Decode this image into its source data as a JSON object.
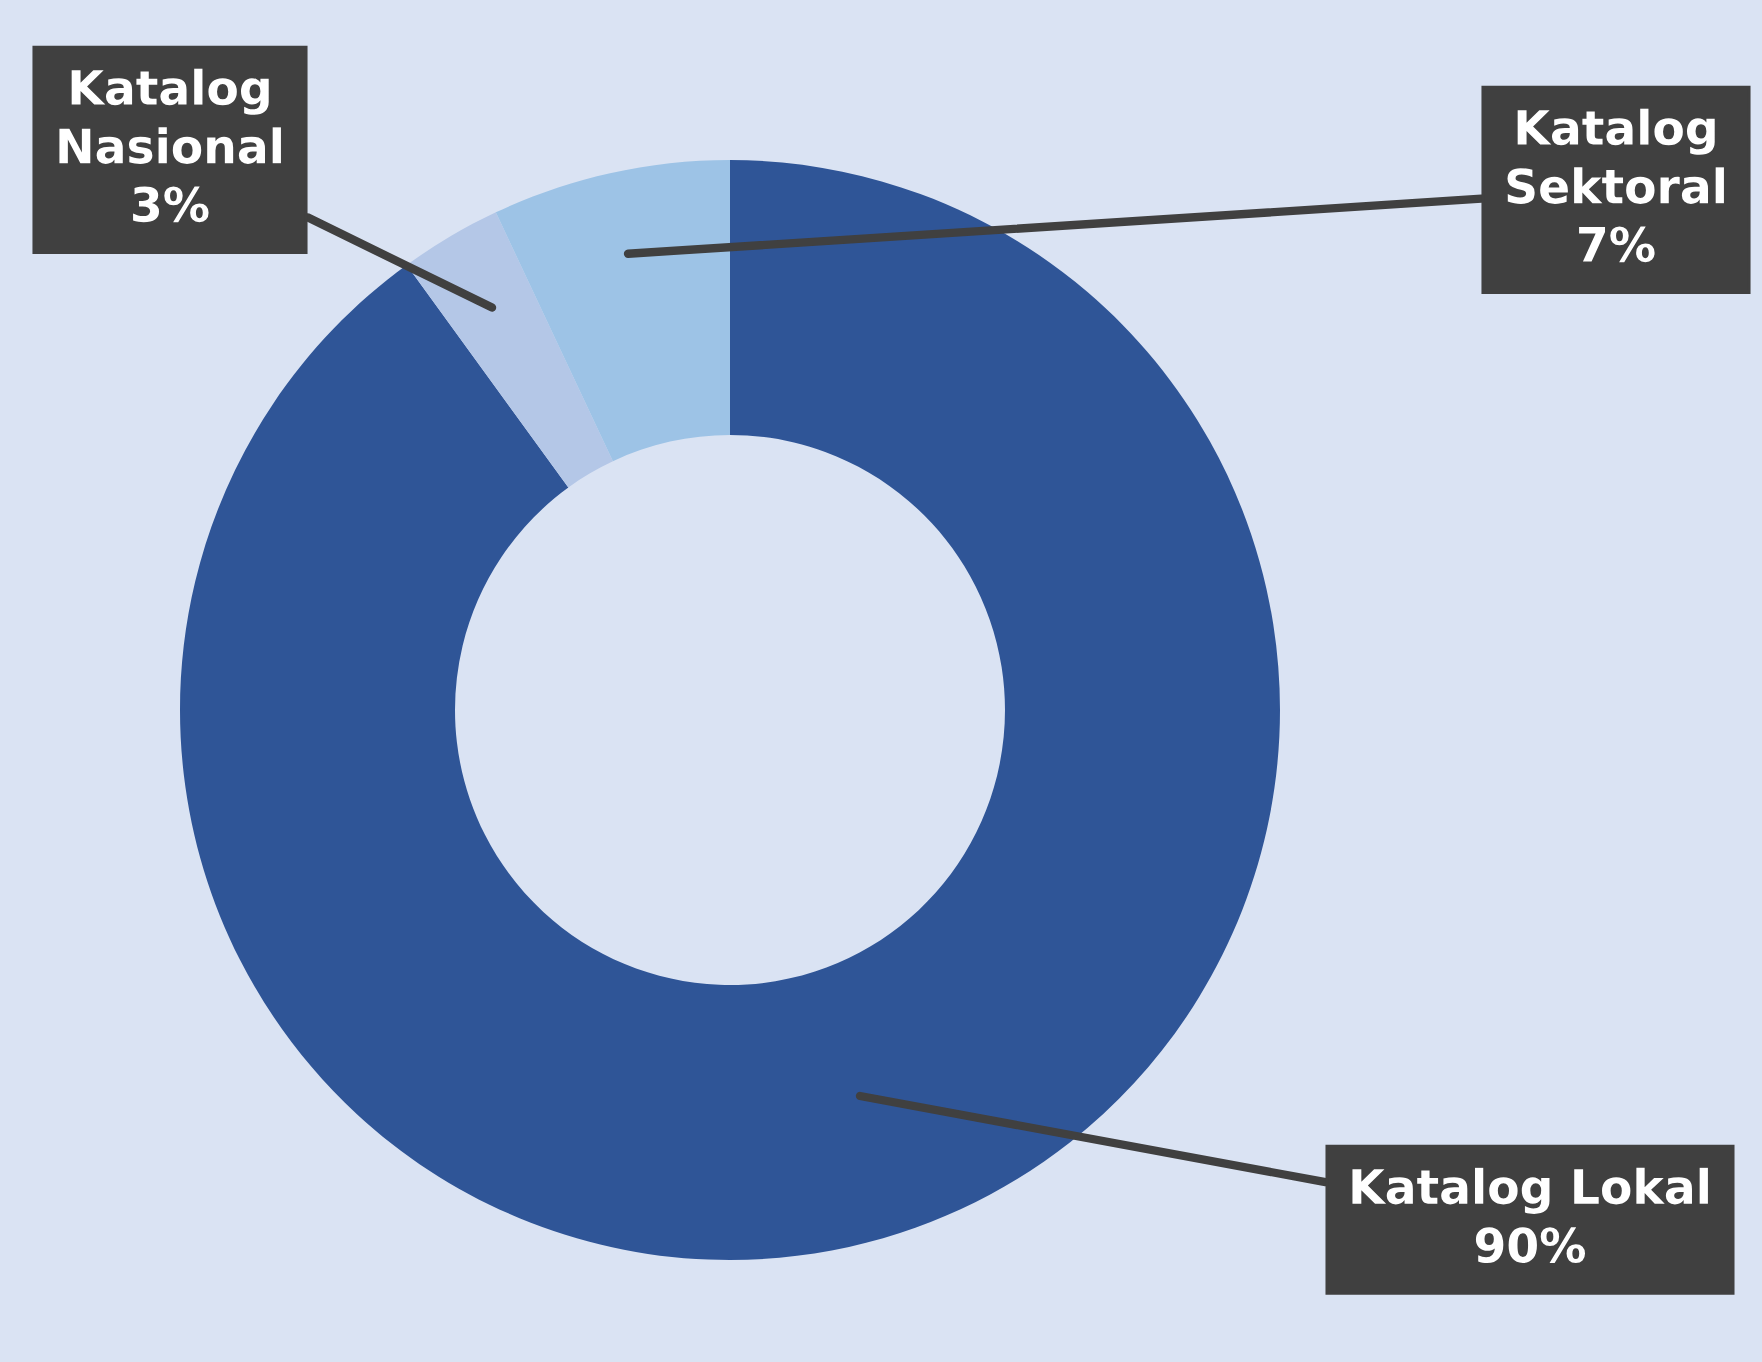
{
  "chart_data": {
    "type": "donut",
    "categories": [
      "Katalog Lokal",
      "Katalog Nasional",
      "Katalog Sektoral"
    ],
    "values": [
      90,
      3,
      7
    ],
    "colors": [
      "#2f5597",
      "#b4c7e7",
      "#9dc3e6"
    ],
    "value_labels": [
      "90%",
      "3%",
      "7%"
    ],
    "legend": false
  }
}
